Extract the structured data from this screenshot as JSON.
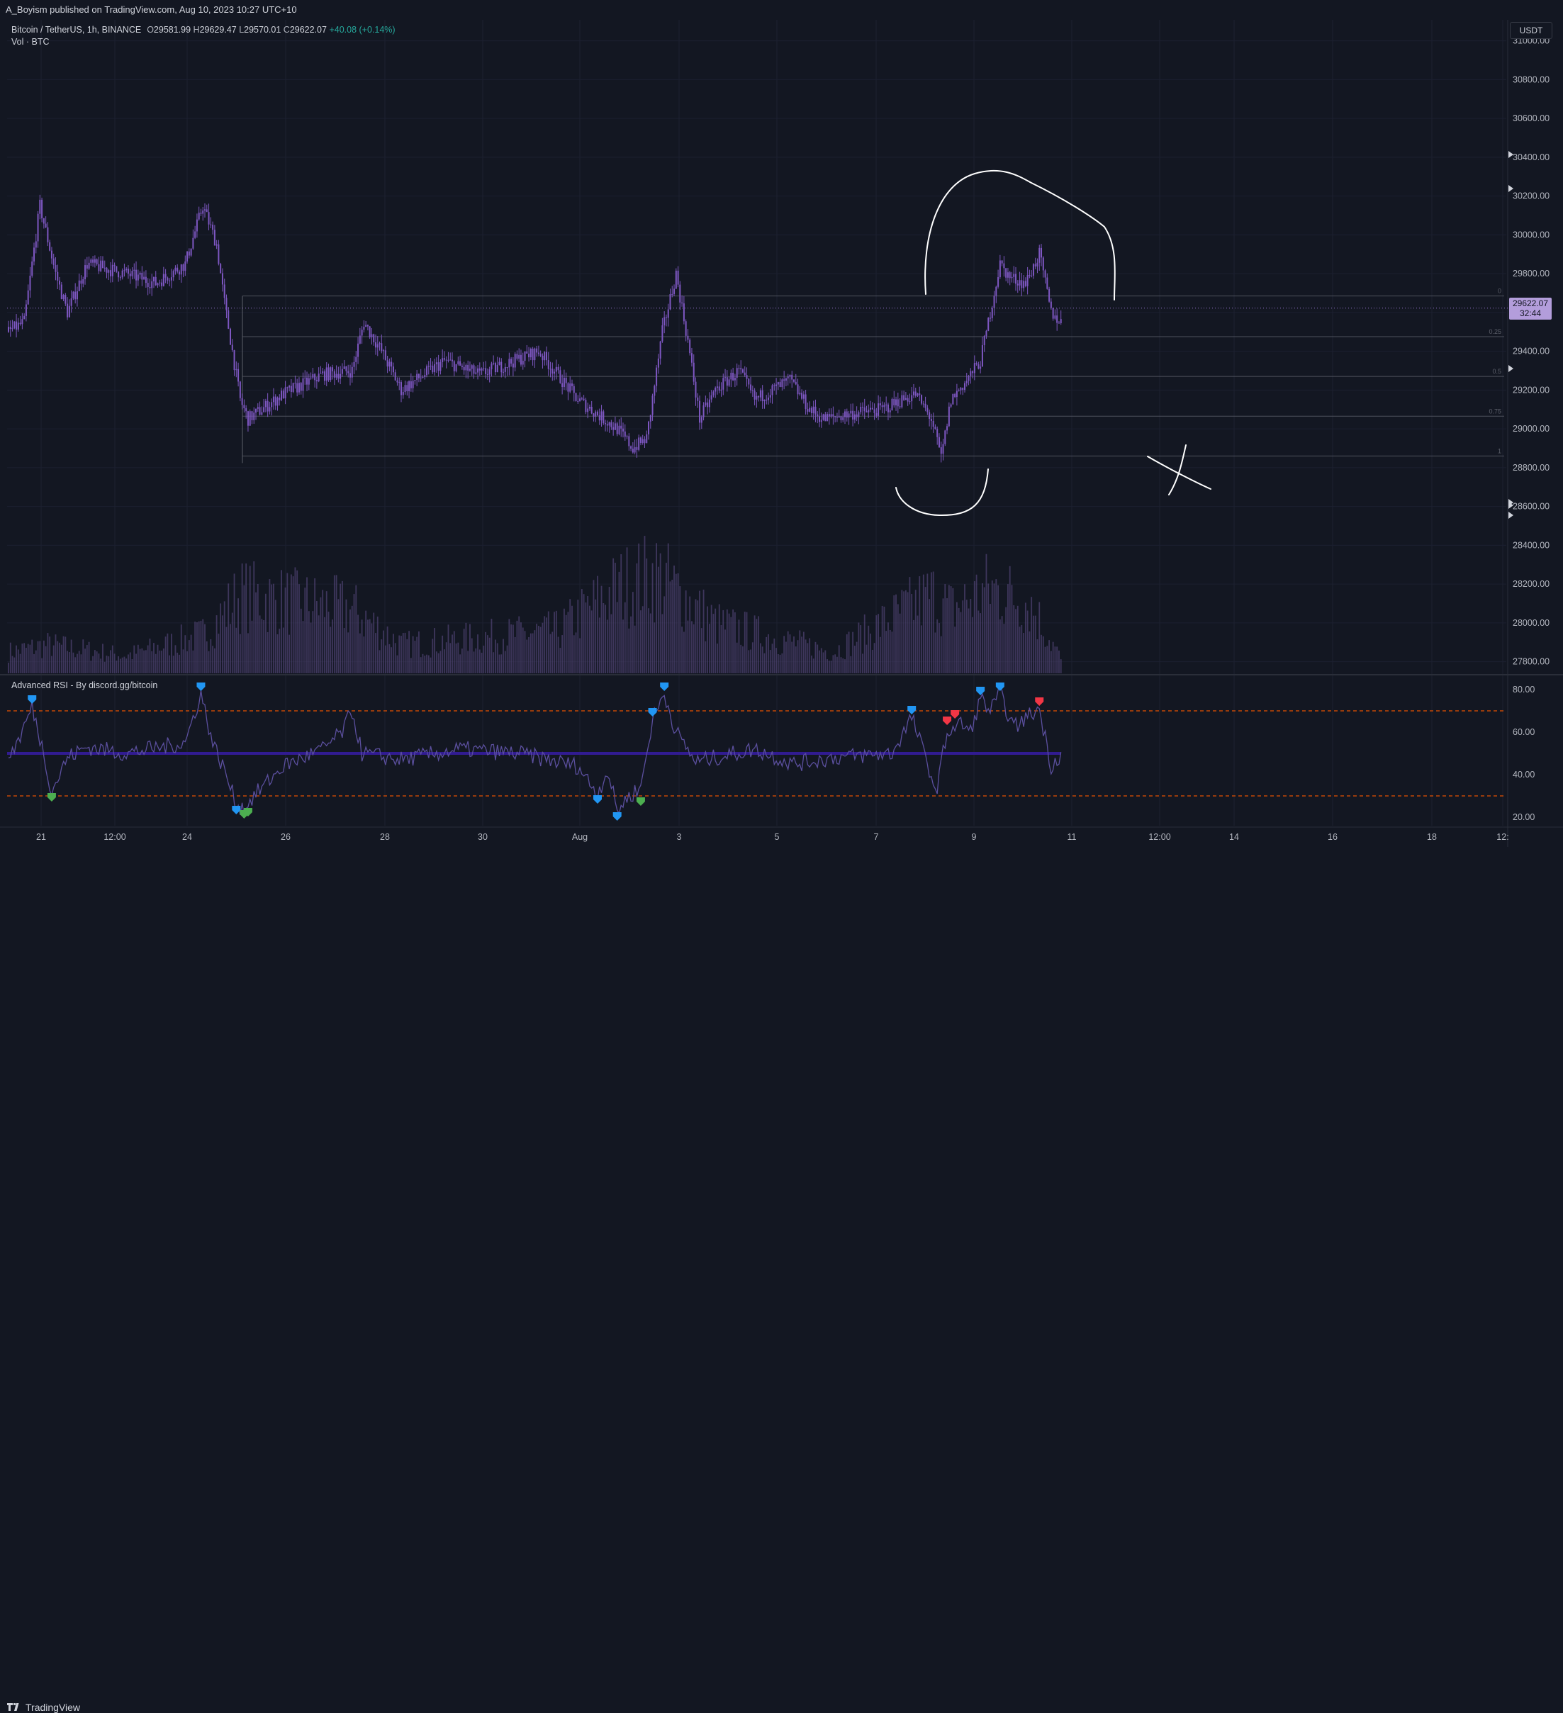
{
  "header": {
    "publisher": "A_Boyism published on TradingView.com, Aug 10, 2023 10:27 UTC+10"
  },
  "legend": {
    "symbol": "Bitcoin / TetherUS, 1h, BINANCE",
    "open_label": "O",
    "open": "29581.99",
    "high_label": "H",
    "high": "29629.47",
    "low_label": "L",
    "low": "29570.01",
    "close_label": "C",
    "close": "29622.07",
    "change": "+40.08 (+0.14%)",
    "volume": "Vol · BTC"
  },
  "rsi_panel": {
    "title": "Advanced RSI - By discord.gg/bitcoin"
  },
  "price_axis": {
    "currency": "USDT",
    "current_price": "29622.07",
    "countdown": "32:44"
  },
  "footer": {
    "brand": "TradingView",
    "brand_icon": "tradingview-logo-icon"
  },
  "colors": {
    "background": "#131722",
    "candle": "#7e57c2",
    "rsi_line": "#5b4f9e",
    "rsi_mid": "#311b92",
    "rsi_bands": "#e65100",
    "marker_blue": "#2196f3",
    "marker_green": "#4caf50",
    "marker_red": "#f23645",
    "annotation": "#ffffff"
  },
  "chart_data": [
    {
      "type": "candlestick",
      "title": "Bitcoin / TetherUS, 1h, BINANCE",
      "interval": "1h",
      "y_axis": {
        "ticks": [
          31000,
          30800,
          30600,
          30400,
          30200,
          30000,
          29800,
          29600,
          29400,
          29200,
          29000,
          28800,
          28600,
          28400,
          28200,
          28000,
          27800
        ],
        "tick_labels": [
          "31000.00",
          "30800.00",
          "30600.00",
          "30400.00",
          "30200.00",
          "30000.00",
          "29800.00",
          "29600.00",
          "29400.00",
          "29200.00",
          "29000.00",
          "28800.00",
          "28600.00",
          "28400.00",
          "28200.00",
          "28000.00",
          "27800.00"
        ],
        "range": [
          27740,
          31130
        ]
      },
      "x_axis": {
        "tick_labels": [
          "21",
          "12:00",
          "24",
          "26",
          "28",
          "30",
          "Aug",
          "3",
          "5",
          "7",
          "9",
          "11",
          "12:00",
          "14",
          "16",
          "18",
          "12:"
        ]
      },
      "current_price": 29622.07,
      "fib_levels": [
        {
          "label": "0",
          "price": 29685
        },
        {
          "label": "0.25",
          "price": 29475
        },
        {
          "label": "0.5",
          "price": 29270
        },
        {
          "label": "0.75",
          "price": 29065
        },
        {
          "label": "1",
          "price": 28860
        }
      ],
      "path_waypoints": [
        [
          0,
          29500
        ],
        [
          8,
          29550
        ],
        [
          16,
          30150
        ],
        [
          24,
          29800
        ],
        [
          30,
          29600
        ],
        [
          40,
          29850
        ],
        [
          60,
          29800
        ],
        [
          75,
          29750
        ],
        [
          90,
          29850
        ],
        [
          99,
          30150
        ],
        [
          106,
          29950
        ],
        [
          110,
          29650
        ],
        [
          118,
          29150
        ],
        [
          122,
          29050
        ],
        [
          140,
          29180
        ],
        [
          160,
          29280
        ],
        [
          175,
          29300
        ],
        [
          181,
          29550
        ],
        [
          190,
          29400
        ],
        [
          200,
          29200
        ],
        [
          222,
          29350
        ],
        [
          240,
          29280
        ],
        [
          270,
          29400
        ],
        [
          290,
          29150
        ],
        [
          310,
          29000
        ],
        [
          318,
          28900
        ],
        [
          325,
          28950
        ],
        [
          333,
          29500
        ],
        [
          340,
          29800
        ],
        [
          346,
          29450
        ],
        [
          352,
          29050
        ],
        [
          360,
          29200
        ],
        [
          372,
          29300
        ],
        [
          380,
          29150
        ],
        [
          398,
          29250
        ],
        [
          408,
          29100
        ],
        [
          415,
          29050
        ],
        [
          430,
          29080
        ],
        [
          445,
          29100
        ],
        [
          455,
          29150
        ],
        [
          462,
          29180
        ],
        [
          470,
          29050
        ],
        [
          475,
          28850
        ],
        [
          480,
          29150
        ],
        [
          488,
          29250
        ],
        [
          495,
          29350
        ],
        [
          505,
          29850
        ],
        [
          510,
          29780
        ],
        [
          518,
          29750
        ],
        [
          525,
          29900
        ],
        [
          531,
          29600
        ],
        [
          536,
          29550
        ]
      ],
      "volume_waypoints": [
        [
          0,
          30
        ],
        [
          20,
          40
        ],
        [
          60,
          25
        ],
        [
          100,
          55
        ],
        [
          118,
          110
        ],
        [
          175,
          90
        ],
        [
          200,
          40
        ],
        [
          280,
          60
        ],
        [
          310,
          120
        ],
        [
          330,
          140
        ],
        [
          360,
          70
        ],
        [
          420,
          30
        ],
        [
          470,
          110
        ],
        [
          480,
          90
        ],
        [
          500,
          120
        ],
        [
          520,
          100
        ],
        [
          536,
          20
        ]
      ]
    },
    {
      "type": "line",
      "title": "Advanced RSI - By discord.gg/bitcoin",
      "y_axis": {
        "ticks": [
          80,
          60,
          40,
          20
        ],
        "tick_labels": [
          "80.00",
          "60.00",
          "40.00",
          "20.00"
        ],
        "range": [
          16,
          86
        ]
      },
      "overbought": 70,
      "oversold": 30,
      "midline": 50,
      "rsi_waypoints": [
        [
          0,
          48
        ],
        [
          6,
          58
        ],
        [
          12,
          72
        ],
        [
          18,
          50
        ],
        [
          22,
          32
        ],
        [
          30,
          48
        ],
        [
          40,
          53
        ],
        [
          60,
          50
        ],
        [
          90,
          55
        ],
        [
          98,
          78
        ],
        [
          104,
          55
        ],
        [
          110,
          42
        ],
        [
          116,
          26
        ],
        [
          120,
          24
        ],
        [
          125,
          30
        ],
        [
          140,
          44
        ],
        [
          160,
          52
        ],
        [
          170,
          60
        ],
        [
          175,
          70
        ],
        [
          180,
          50
        ],
        [
          200,
          47
        ],
        [
          230,
          52
        ],
        [
          260,
          50
        ],
        [
          290,
          44
        ],
        [
          300,
          31
        ],
        [
          305,
          42
        ],
        [
          310,
          23
        ],
        [
          315,
          29
        ],
        [
          322,
          34
        ],
        [
          328,
          66
        ],
        [
          334,
          78
        ],
        [
          340,
          60
        ],
        [
          350,
          46
        ],
        [
          380,
          52
        ],
        [
          400,
          45
        ],
        [
          420,
          48
        ],
        [
          450,
          50
        ],
        [
          460,
          67
        ],
        [
          470,
          40
        ],
        [
          472,
          30
        ],
        [
          478,
          60
        ],
        [
          485,
          64
        ],
        [
          490,
          60
        ],
        [
          495,
          76
        ],
        [
          500,
          70
        ],
        [
          505,
          78
        ],
        [
          512,
          62
        ],
        [
          520,
          68
        ],
        [
          525,
          71
        ],
        [
          531,
          44
        ],
        [
          536,
          50
        ]
      ],
      "markers": [
        {
          "bar": 12,
          "value": 72,
          "color": "blue",
          "position": "above"
        },
        {
          "bar": 22,
          "value": 32,
          "color": "green",
          "position": "below"
        },
        {
          "bar": 98,
          "value": 78,
          "color": "blue",
          "position": "above"
        },
        {
          "bar": 116,
          "value": 26,
          "color": "blue",
          "position": "below"
        },
        {
          "bar": 120,
          "value": 24,
          "color": "green",
          "position": "below"
        },
        {
          "bar": 122,
          "value": 25,
          "color": "green",
          "position": "below"
        },
        {
          "bar": 300,
          "value": 31,
          "color": "blue",
          "position": "below"
        },
        {
          "bar": 310,
          "value": 23,
          "color": "blue",
          "position": "below"
        },
        {
          "bar": 322,
          "value": 30,
          "color": "green",
          "position": "below"
        },
        {
          "bar": 328,
          "value": 66,
          "color": "blue",
          "position": "above"
        },
        {
          "bar": 334,
          "value": 78,
          "color": "blue",
          "position": "above"
        },
        {
          "bar": 460,
          "value": 67,
          "color": "blue",
          "position": "above"
        },
        {
          "bar": 478,
          "value": 62,
          "color": "red",
          "position": "above"
        },
        {
          "bar": 482,
          "value": 65,
          "color": "red",
          "position": "above"
        },
        {
          "bar": 495,
          "value": 76,
          "color": "blue",
          "position": "above"
        },
        {
          "bar": 505,
          "value": 78,
          "color": "blue",
          "position": "above"
        },
        {
          "bar": 525,
          "value": 71,
          "color": "red",
          "position": "above"
        }
      ]
    }
  ]
}
